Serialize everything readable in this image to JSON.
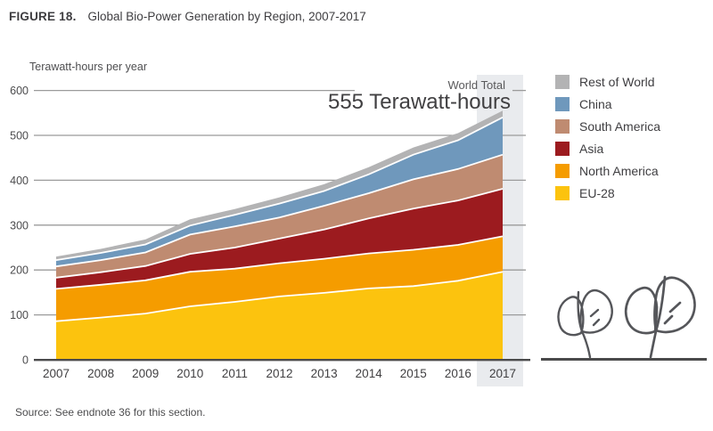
{
  "figure": {
    "label": "FIGURE 18.",
    "title": "Global Bio-Power Generation by Region, 2007-2017",
    "units_label": "Terawatt-hours per year",
    "source": "Source: See endnote 36 for this section."
  },
  "annotation": {
    "title": "World Total",
    "value": "555 Terawatt-hours"
  },
  "chart_data": {
    "type": "area",
    "stacked": true,
    "title": "Global Bio-Power Generation by Region, 2007-2017",
    "xlabel": "",
    "ylabel": "Terawatt-hours per year",
    "ylim": [
      0,
      600
    ],
    "yticks": [
      0,
      100,
      200,
      300,
      400,
      500,
      600
    ],
    "grid": true,
    "legend_position": "right",
    "highlight_category": "2017",
    "world_total_2017": 555,
    "categories": [
      "2007",
      "2008",
      "2009",
      "2010",
      "2011",
      "2012",
      "2013",
      "2014",
      "2015",
      "2016",
      "2017"
    ],
    "series": [
      {
        "name": "EU-28",
        "color": "#fcc30e",
        "values": [
          86,
          94,
          103,
          119,
          129,
          141,
          149,
          159,
          164,
          176,
          196
        ]
      },
      {
        "name": "North America",
        "color": "#f59c00",
        "values": [
          72,
          73,
          74,
          77,
          74,
          74,
          76,
          78,
          81,
          80,
          79
        ]
      },
      {
        "name": "Asia",
        "color": "#9c1b1f",
        "values": [
          25,
          28,
          32,
          40,
          47,
          55,
          65,
          78,
          92,
          99,
          106
        ]
      },
      {
        "name": "South America",
        "color": "#bf8b71",
        "values": [
          25,
          27,
          30,
          43,
          47,
          47,
          53,
          56,
          65,
          70,
          76
        ]
      },
      {
        "name": "China",
        "color": "#6f98bc",
        "values": [
          14,
          16,
          18,
          20,
          26,
          31,
          33,
          42,
          55,
          64,
          83
        ]
      },
      {
        "name": "Rest of World",
        "color": "#b3b3b4",
        "values": [
          8,
          9,
          11,
          14,
          13,
          14,
          15,
          16,
          16,
          16,
          15
        ]
      }
    ],
    "totals_by_year": [
      230,
      247,
      268,
      313,
      336,
      362,
      391,
      429,
      473,
      505,
      555
    ]
  },
  "colors": {
    "highlight_band": "#e9ebee",
    "gridline": "#9b9b9b",
    "axis": "#4a4a4b",
    "separator": "#ffffff",
    "tick_text": "#414042",
    "leaf_stroke": "#55565a"
  }
}
